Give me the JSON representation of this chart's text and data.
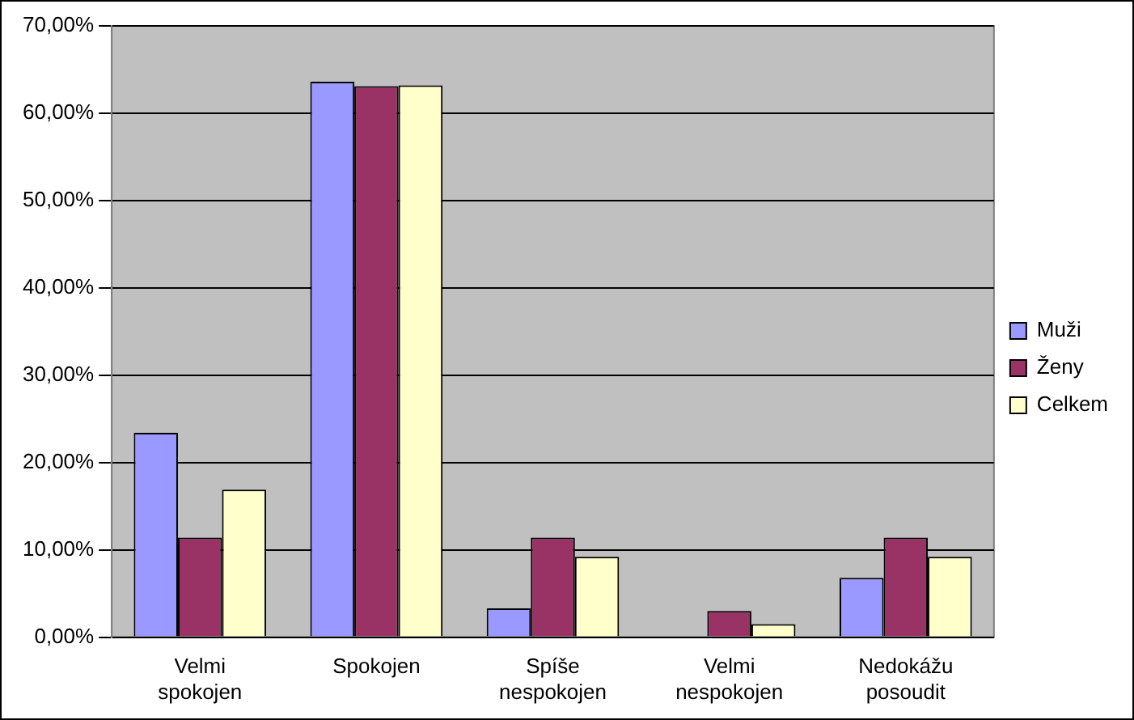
{
  "chart_data": {
    "type": "bar",
    "categories": [
      "Velmi spokojen",
      "Spokojen",
      "Spíše nespokojen",
      "Velmi nespokojen",
      "Nedokážu posoudit"
    ],
    "series": [
      {
        "name": "Muži",
        "color": "#9999ff",
        "values": [
          23.4,
          63.6,
          3.3,
          0.0,
          6.8
        ]
      },
      {
        "name": "Ženy",
        "color": "#993366",
        "values": [
          11.4,
          63.1,
          11.4,
          3.0,
          11.4
        ]
      },
      {
        "name": "Celkem",
        "color": "#ffffcc",
        "values": [
          16.9,
          63.2,
          9.2,
          1.5,
          9.2
        ]
      }
    ],
    "ylim": [
      0,
      70
    ],
    "yticks": [
      {
        "value": 0,
        "label": "0,00%"
      },
      {
        "value": 10,
        "label": "10,00%"
      },
      {
        "value": 20,
        "label": "20,00%"
      },
      {
        "value": 30,
        "label": "30,00%"
      },
      {
        "value": 40,
        "label": "40,00%"
      },
      {
        "value": 50,
        "label": "50,00%"
      },
      {
        "value": 60,
        "label": "60,00%"
      },
      {
        "value": 70,
        "label": "70,00%"
      }
    ],
    "grid": "y",
    "legend": "right"
  }
}
